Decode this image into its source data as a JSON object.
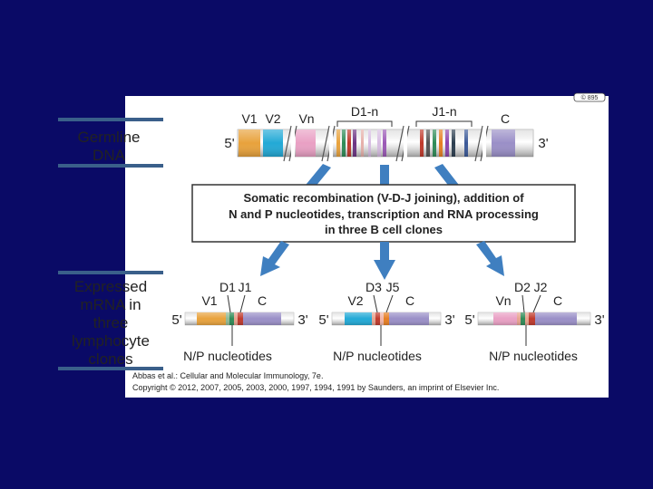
{
  "corner_tag": "© 895",
  "germline": {
    "title_line1": "Germline",
    "title_line2": "DNA",
    "labels": {
      "v1": "V1",
      "v2": "V2",
      "vn": "Vn",
      "d": "D1-n",
      "j": "J1-n",
      "c": "C"
    },
    "five_prime": "5'",
    "three_prime": "3'"
  },
  "recombination_box": {
    "line1": "Somatic recombination (V-D-J joining), addition of",
    "line2": "N and P nucleotides, transcription and RNA processing",
    "line3": "in three B cell clones"
  },
  "expressed": {
    "title_lines": [
      "Expressed",
      "mRNA in",
      "three",
      "lymphocyte",
      "clones"
    ]
  },
  "clones": [
    {
      "v": "V1",
      "d": "D1",
      "j": "J1",
      "c": "C",
      "five_prime": "5'",
      "three_prime": "3'",
      "np": "N/P nucleotides"
    },
    {
      "v": "V2",
      "d": "D3",
      "j": "J5",
      "c": "C",
      "five_prime": "5'",
      "three_prime": "3'",
      "np": "N/P nucleotides"
    },
    {
      "v": "Vn",
      "d": "D2",
      "j": "J2",
      "c": "C",
      "five_prime": "5'",
      "three_prime": "3'",
      "np": "N/P nucleotides"
    }
  ],
  "citation": {
    "line1": "Abbas et al.: Cellular and Molecular Immunology, 7e.",
    "line2": "Copyright © 2012, 2007, 2005, 2003, 2000, 1997, 1994, 1991 by Saunders, an imprint of Elsevier Inc."
  },
  "colors": {
    "background": "#0a0a66",
    "v1": "#e8a23c",
    "v2": "#22a9d6",
    "vn": "#e9a0c4",
    "c": "#9a8fc7",
    "arrow": "#3f7fc0",
    "title_bar": "#3a5f8a"
  }
}
